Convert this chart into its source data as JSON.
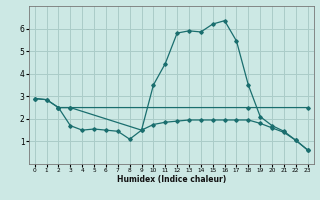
{
  "xlabel": "Humidex (Indice chaleur)",
  "bg_color": "#cce8e4",
  "grid_color": "#aaccc8",
  "line_color": "#1a6e6e",
  "xlim": [
    -0.5,
    23.5
  ],
  "ylim": [
    0,
    7.0
  ],
  "yticks": [
    1,
    2,
    3,
    4,
    5,
    6
  ],
  "xticks": [
    0,
    1,
    2,
    3,
    4,
    5,
    6,
    7,
    8,
    9,
    10,
    11,
    12,
    13,
    14,
    15,
    16,
    17,
    18,
    19,
    20,
    21,
    22,
    23
  ],
  "line1_x": [
    0,
    1,
    2,
    3,
    9,
    10,
    11,
    12,
    13,
    14,
    15,
    16,
    17,
    18,
    19,
    20,
    21,
    22,
    23
  ],
  "line1_y": [
    2.9,
    2.85,
    2.5,
    2.5,
    1.5,
    3.5,
    4.45,
    5.8,
    5.9,
    5.85,
    6.2,
    6.35,
    5.45,
    3.5,
    2.1,
    1.7,
    1.45,
    1.05,
    0.62
  ],
  "line2_x": [
    0,
    1,
    2,
    3,
    18,
    23
  ],
  "line2_y": [
    2.9,
    2.85,
    2.5,
    2.5,
    2.5,
    2.5
  ],
  "line3_x": [
    2,
    3,
    4,
    5,
    6,
    7,
    8,
    9,
    10,
    11,
    12,
    13,
    14,
    15,
    16,
    17,
    18,
    19,
    20,
    21,
    22,
    23
  ],
  "line3_y": [
    2.5,
    1.7,
    1.5,
    1.55,
    1.5,
    1.45,
    1.1,
    1.5,
    1.75,
    1.85,
    1.9,
    1.95,
    1.95,
    1.95,
    1.95,
    1.95,
    1.95,
    1.8,
    1.6,
    1.4,
    1.05,
    0.62
  ]
}
